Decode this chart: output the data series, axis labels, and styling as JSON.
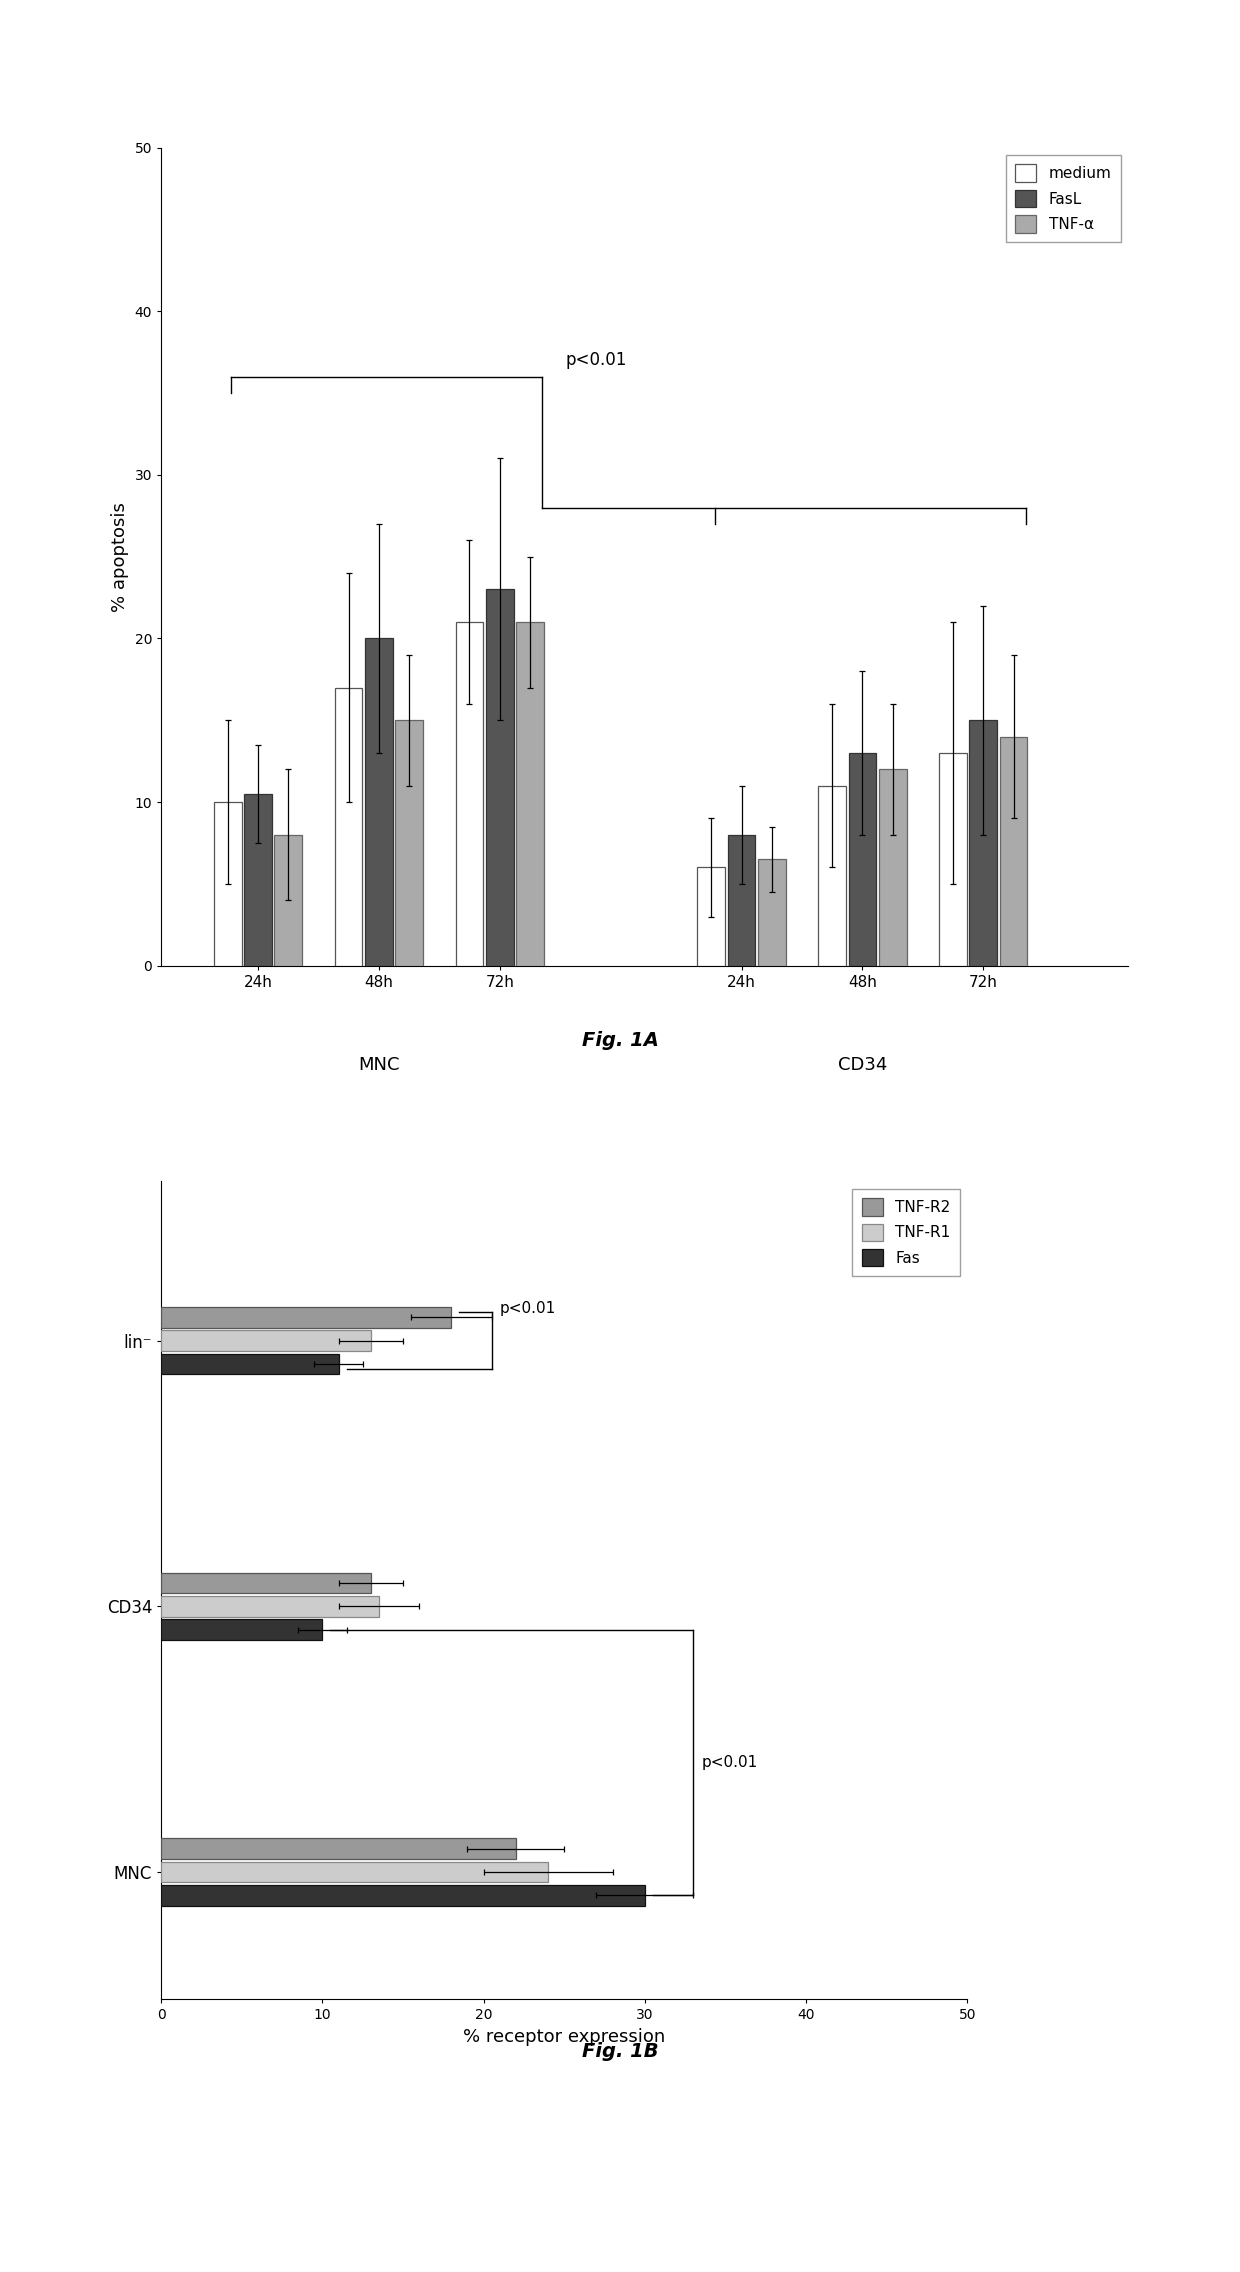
{
  "fig1a": {
    "ylabel": "% apoptosis",
    "ylim": [
      0,
      50
    ],
    "yticks": [
      0,
      10,
      20,
      30,
      40,
      50
    ],
    "timepoints": [
      "24h",
      "48h",
      "72h"
    ],
    "series": [
      "medium",
      "FasL",
      "TNF-α"
    ],
    "data": {
      "MNC": {
        "24h": {
          "medium": 10,
          "FasL": 10.5,
          "TNF-α": 8
        },
        "48h": {
          "medium": 17,
          "FasL": 20,
          "TNF-α": 15
        },
        "72h": {
          "medium": 21,
          "FasL": 23,
          "TNF-α": 21
        }
      },
      "CD34": {
        "24h": {
          "medium": 6,
          "FasL": 8,
          "TNF-α": 6.5
        },
        "48h": {
          "medium": 11,
          "FasL": 13,
          "TNF-α": 12
        },
        "72h": {
          "medium": 13,
          "FasL": 15,
          "TNF-α": 14
        }
      }
    },
    "errors": {
      "MNC": {
        "24h": {
          "medium": 5,
          "FasL": 3,
          "TNF-α": 4
        },
        "48h": {
          "medium": 7,
          "FasL": 7,
          "TNF-α": 4
        },
        "72h": {
          "medium": 5,
          "FasL": 8,
          "TNF-α": 4
        }
      },
      "CD34": {
        "24h": {
          "medium": 3,
          "FasL": 3,
          "TNF-α": 2
        },
        "48h": {
          "medium": 5,
          "FasL": 5,
          "TNF-α": 4
        },
        "72h": {
          "medium": 8,
          "FasL": 7,
          "TNF-α": 5
        }
      }
    }
  },
  "fig1b": {
    "xlabel": "% receptor expression",
    "xlim": [
      0,
      50
    ],
    "xticks": [
      0,
      10,
      20,
      30,
      40,
      50
    ],
    "cell_types": [
      "lin⁻",
      "CD34",
      "MNC"
    ],
    "series": [
      "TNF-R2",
      "TNF-R1",
      "Fas"
    ],
    "data": {
      "lin⁻": {
        "TNF-R2": 18,
        "TNF-R1": 13,
        "Fas": 11
      },
      "CD34": {
        "TNF-R2": 13,
        "TNF-R1": 13.5,
        "Fas": 10
      },
      "MNC": {
        "TNF-R2": 22,
        "TNF-R1": 24,
        "Fas": 30
      }
    },
    "errors": {
      "lin⁻": {
        "TNF-R2": 2.5,
        "TNF-R1": 2,
        "Fas": 1.5
      },
      "CD34": {
        "TNF-R2": 2,
        "TNF-R1": 2.5,
        "Fas": 1.5
      },
      "MNC": {
        "TNF-R2": 3,
        "TNF-R1": 4,
        "Fas": 3
      }
    }
  },
  "background_color": "#ffffff",
  "bar_width": 0.25
}
